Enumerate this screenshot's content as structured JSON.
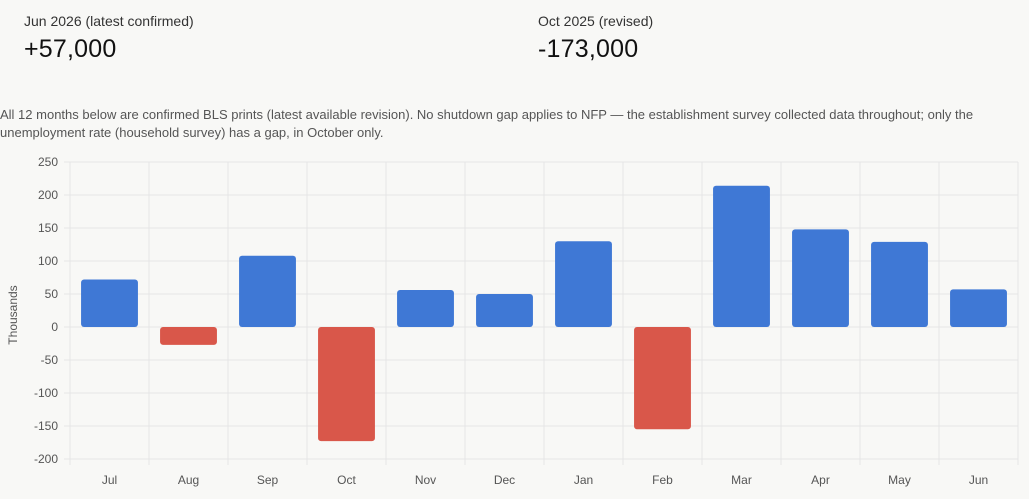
{
  "stats": [
    {
      "label": "Jun 2026 (latest confirmed)",
      "value": "+57,000"
    },
    {
      "label": "Oct 2025 (revised)",
      "value": "-173,000"
    }
  ],
  "note": "All 12 months below are confirmed BLS prints (latest available revision). No shutdown gap applies to NFP — the establishment survey collected data throughout; only the unemployment rate (household survey) has a gap, in October only.",
  "colors": {
    "positive": "#3f78d5",
    "negative": "#d9574a",
    "grid": "#e6e6e6",
    "axis_text": "#555555"
  },
  "chart_data": {
    "type": "bar",
    "categories": [
      "Jul",
      "Aug",
      "Sep",
      "Oct",
      "Nov",
      "Dec",
      "Jan",
      "Feb",
      "Mar",
      "Apr",
      "May",
      "Jun"
    ],
    "series": [
      {
        "values": [
          72,
          -27,
          108,
          -173,
          56,
          50,
          130,
          -155,
          214,
          148,
          129,
          57
        ]
      }
    ],
    "ylabel": "Thousands",
    "xlabel": "",
    "ylim": [
      -200,
      250
    ],
    "yticks": [
      250,
      200,
      150,
      100,
      50,
      0,
      -50,
      -100,
      -150,
      -200
    ],
    "grid": true
  }
}
